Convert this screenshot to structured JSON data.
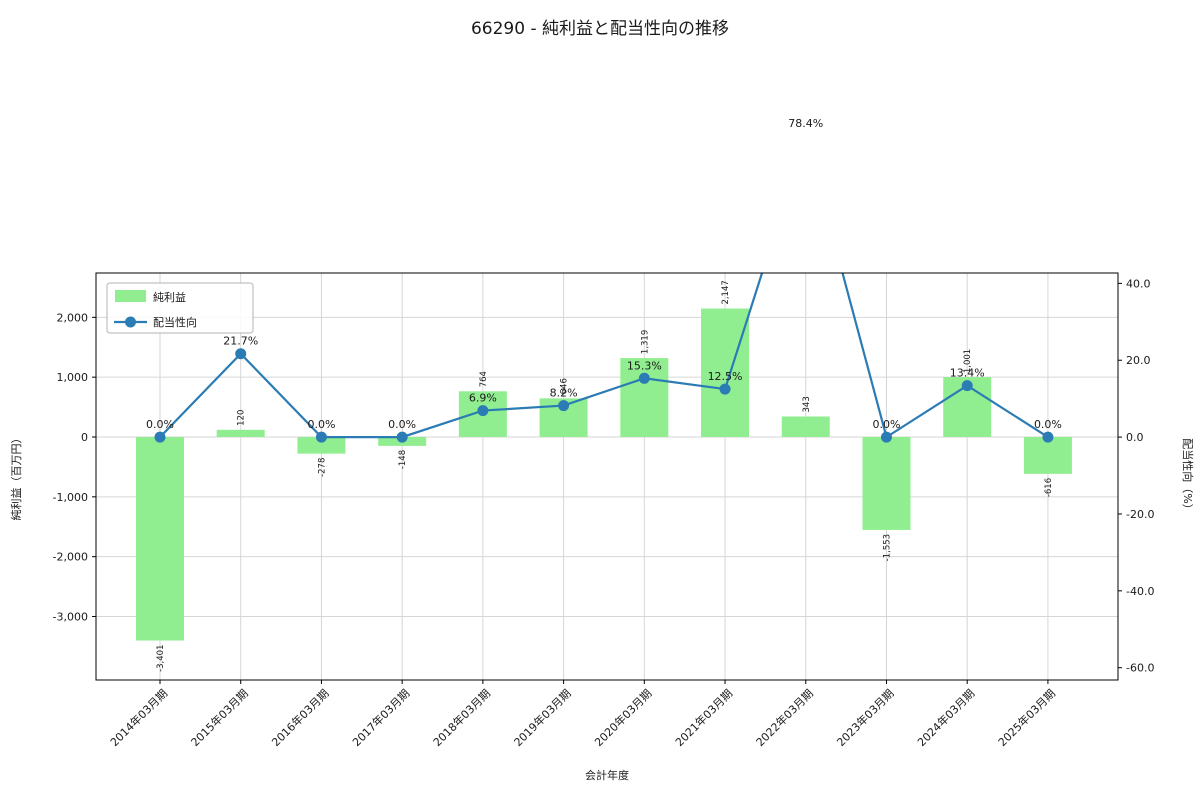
{
  "title": "66290 - 純利益と配当性向の推移",
  "chart_data": {
    "type": "bar+line",
    "title": "66290 - 純利益と配当性向の推移",
    "xlabel": "会計年度",
    "ylabel_left": "純利益（百万円）",
    "ylabel_right": "配当性向（%）",
    "categories": [
      "2014年03月期",
      "2015年03月期",
      "2016年03月期",
      "2017年03月期",
      "2018年03月期",
      "2019年03月期",
      "2020年03月期",
      "2021年03月期",
      "2022年03月期",
      "2023年03月期",
      "2024年03月期",
      "2025年03月期"
    ],
    "series": [
      {
        "name": "純利益",
        "kind": "bar",
        "axis": "left",
        "color": "#90ee90",
        "values": [
          -3401,
          120,
          -278,
          -148,
          764,
          646,
          1319,
          2147,
          343,
          -1553,
          1001,
          -616
        ],
        "labels": [
          "-3,401",
          "120",
          "-278",
          "-148",
          "764",
          "646",
          "1,319",
          "2,147",
          "343",
          "-1,553",
          "1,001",
          "-616"
        ]
      },
      {
        "name": "配当性向",
        "kind": "line",
        "axis": "right",
        "color": "#2b7bb4",
        "label_color": "#3e8ec4",
        "marker": "circle",
        "values": [
          0.0,
          21.7,
          0.0,
          0.0,
          6.9,
          8.2,
          15.3,
          12.5,
          78.4,
          0.0,
          13.4,
          0.0
        ],
        "labels": [
          "0.0%",
          "21.7%",
          "0.0%",
          "0.0%",
          "6.9%",
          "8.2%",
          "15.3%",
          "12.5%",
          "78.4%",
          "0.0%",
          "13.4%",
          "0.0%"
        ]
      }
    ],
    "left_ticks": [
      {
        "v": 2000,
        "label": "2,000"
      },
      {
        "v": 1000,
        "label": "1,000"
      },
      {
        "v": 0,
        "label": "0"
      },
      {
        "v": -1000,
        "label": "-1,000"
      },
      {
        "v": -2000,
        "label": "-2,000"
      },
      {
        "v": -3000,
        "label": "-3,000"
      }
    ],
    "right_ticks": [
      {
        "v": 40,
        "label": "40.0"
      },
      {
        "v": 20,
        "label": "20.0"
      },
      {
        "v": 0,
        "label": "0.0"
      },
      {
        "v": -20,
        "label": "-20.0"
      },
      {
        "v": -40,
        "label": "-40.0"
      },
      {
        "v": -60,
        "label": "-60.0"
      }
    ],
    "left_ylim": [
      -4061,
      2741
    ],
    "right_ylim": [
      -63.2,
      42.7
    ],
    "grid": true,
    "legend": {
      "position": "upper-left",
      "entries": [
        "純利益",
        "配当性向"
      ]
    },
    "colors": {
      "grid": "#d6d6d6",
      "axis": "#000000",
      "text": "#1a1a1a",
      "background": "#ffffff"
    }
  }
}
